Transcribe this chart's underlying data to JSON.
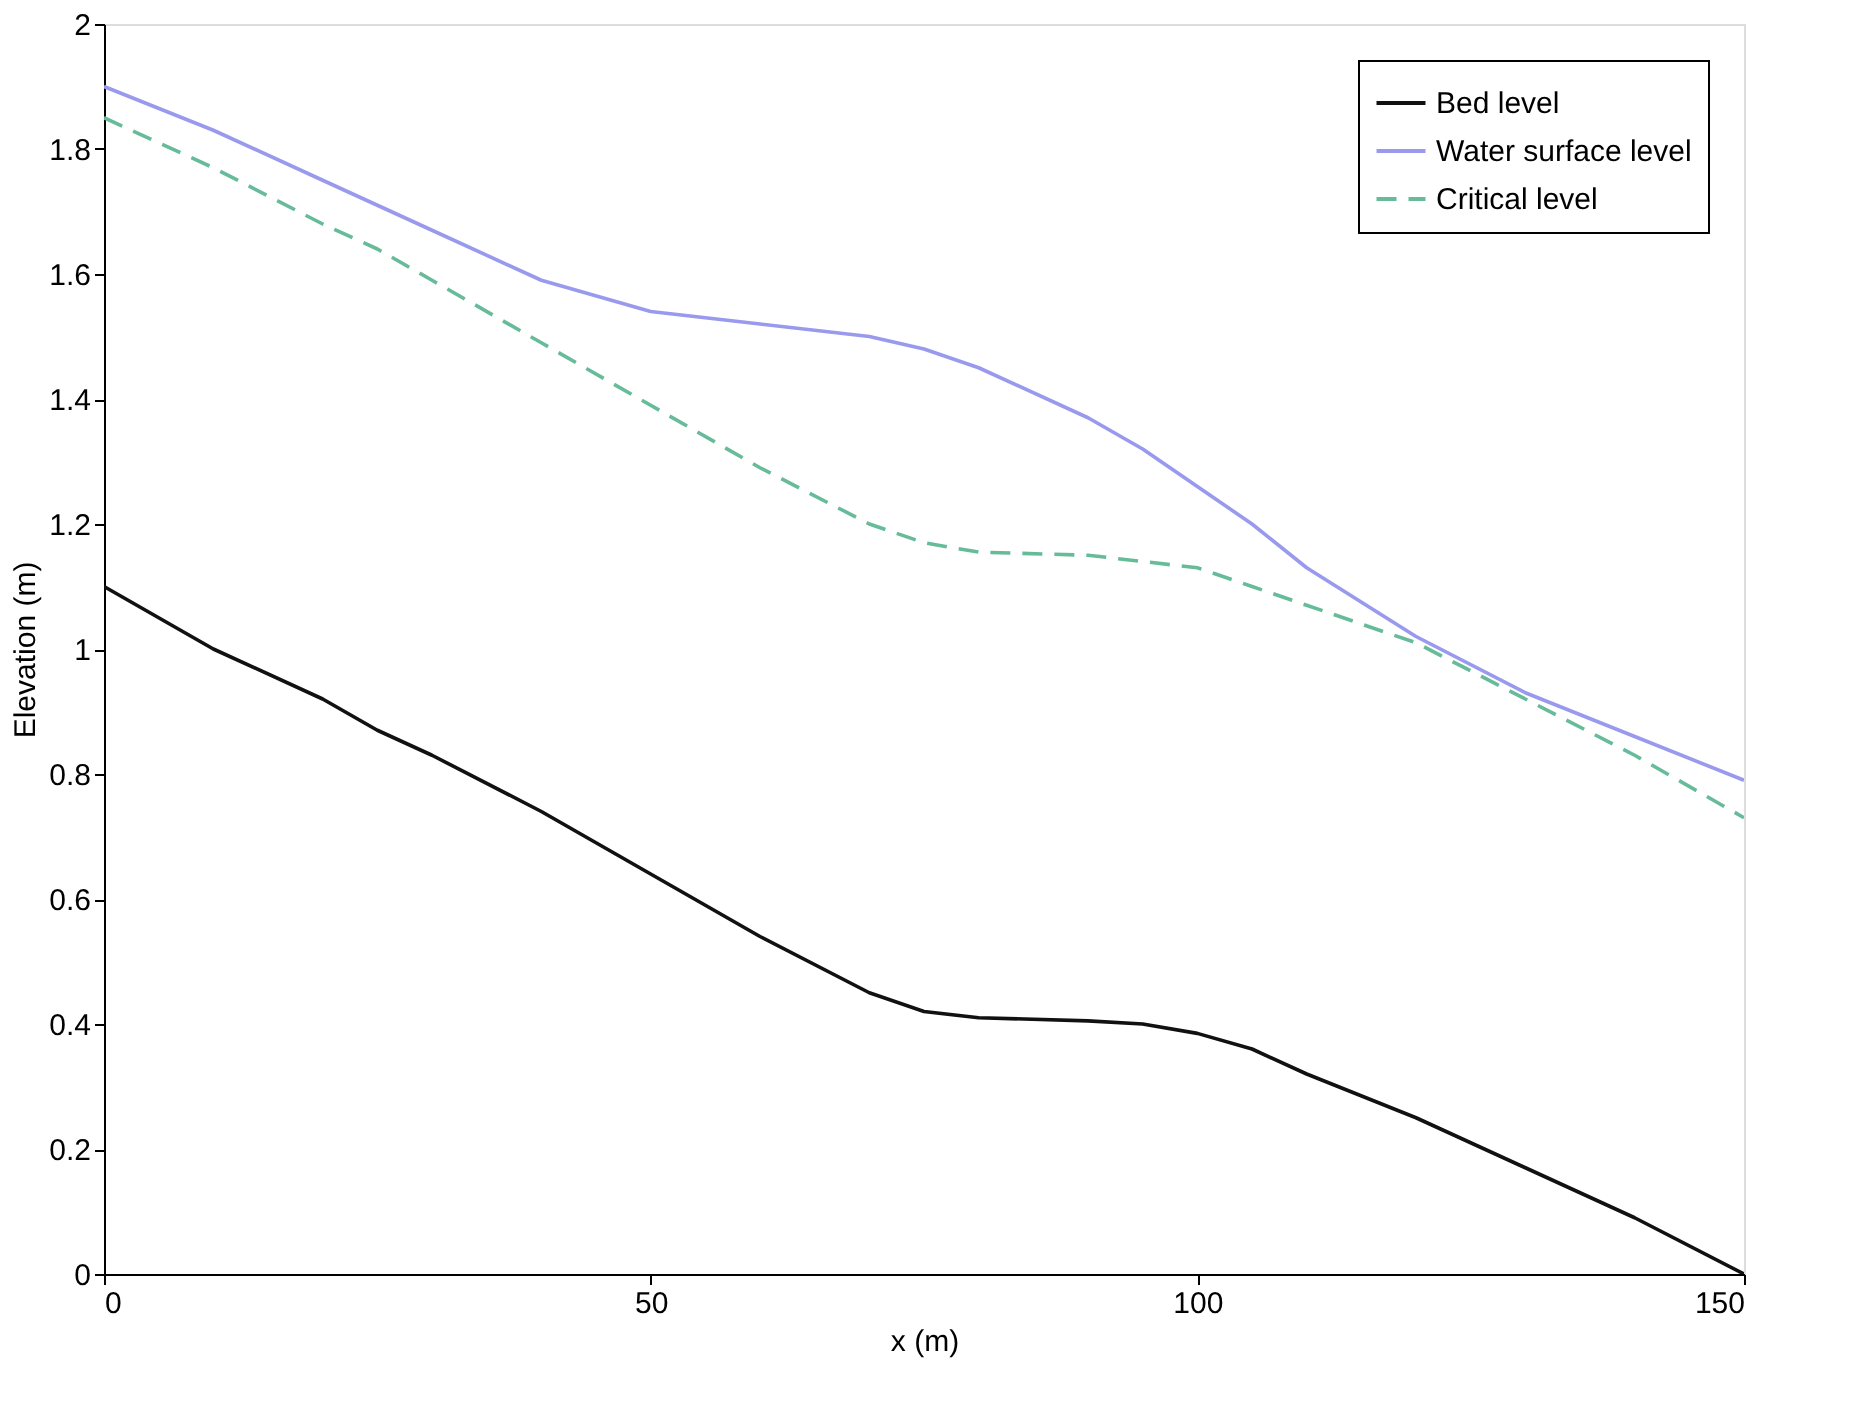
{
  "chart_data": {
    "type": "line",
    "xlabel": "x (m)",
    "ylabel": "Elevation (m)",
    "x": [
      0,
      10,
      20,
      25,
      30,
      40,
      50,
      60,
      70,
      75,
      80,
      90,
      95,
      100,
      105,
      110,
      120,
      130,
      140,
      150
    ],
    "series": [
      {
        "name": "Bed level",
        "color": "#111111",
        "line_style": "solid",
        "values": [
          1.1,
          1.0,
          0.92,
          0.87,
          0.83,
          0.74,
          0.64,
          0.54,
          0.45,
          0.42,
          0.41,
          0.405,
          0.4,
          0.385,
          0.36,
          0.32,
          0.25,
          0.17,
          0.09,
          0.0
        ]
      },
      {
        "name": "Water surface level",
        "color": "#9999ee",
        "line_style": "solid",
        "values": [
          1.9,
          1.83,
          1.75,
          1.71,
          1.67,
          1.59,
          1.54,
          1.52,
          1.5,
          1.48,
          1.45,
          1.37,
          1.32,
          1.26,
          1.2,
          1.13,
          1.02,
          0.93,
          0.86,
          0.79
        ]
      },
      {
        "name": "Critical level",
        "color": "#66bb99",
        "line_style": "dashed",
        "values": [
          1.85,
          1.77,
          1.68,
          1.64,
          1.59,
          1.49,
          1.39,
          1.29,
          1.2,
          1.17,
          1.155,
          1.15,
          1.14,
          1.13,
          1.1,
          1.07,
          1.01,
          0.92,
          0.83,
          0.73
        ]
      }
    ],
    "xlim": [
      0,
      150
    ],
    "xticks": [
      0,
      50,
      100,
      150
    ],
    "ylim": [
      0,
      2
    ],
    "yticks": [
      0,
      0.2,
      0.4,
      0.6,
      0.8,
      1,
      1.2,
      1.4,
      1.6,
      1.8,
      2
    ],
    "grid": false,
    "legend": "top right",
    "marker": "none"
  }
}
